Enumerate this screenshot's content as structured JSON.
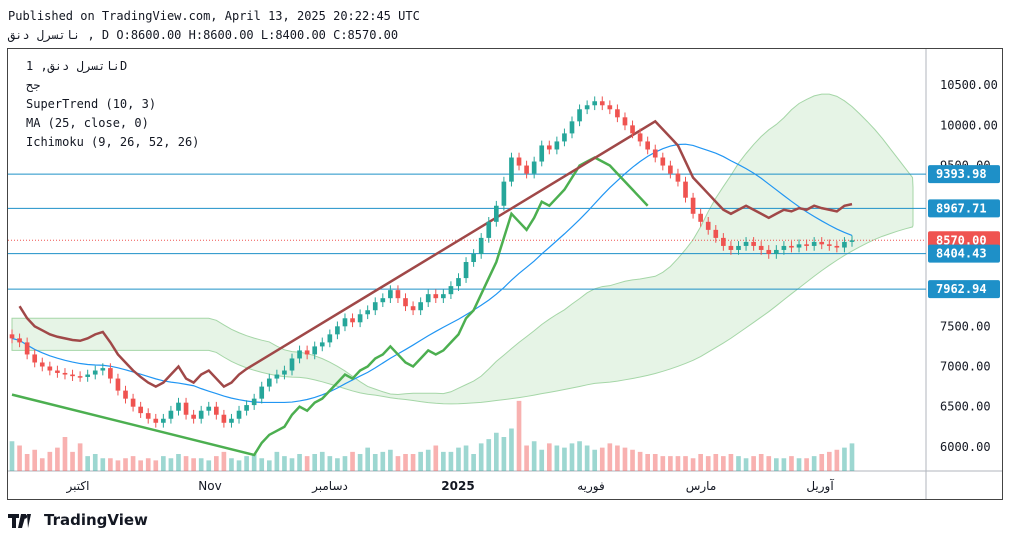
{
  "header": {
    "published": "Published on TradingView.com, April 13, 2025 20:22:45 UTC",
    "ohlc": "ناتسرل دنق , D O:8600.00 H:8600.00 L:8400.00 C:8570.00"
  },
  "legend": {
    "symbol": "ناتسرل دنق, 1D",
    "exchange": "جح",
    "supertrend": "SuperTrend (10, 3)",
    "ma": "MA (25, close, 0)",
    "ichimoku": "Ichimoku (9, 26, 52, 26)"
  },
  "footer": {
    "brand": "TradingView"
  },
  "colors": {
    "up": "#26a69a",
    "down": "#ef5350",
    "supertrend_up": "#4caf50",
    "supertrend_down": "#a04848",
    "ma": "#2196f3",
    "cloud_green": "#a5d6a7",
    "cloud_red": "#ef9a9a",
    "level": "#1e90c8"
  },
  "chart_data": {
    "type": "candlestick",
    "title": "ناتسرل دنق, 1D",
    "x_ticks": [
      "اکتبر",
      "Nov",
      "دسامبر",
      "2025",
      "فوریه",
      "مارس",
      "آوریل"
    ],
    "y_ticks": [
      6000,
      6500,
      7000,
      7500,
      8000,
      8500,
      9000,
      9500,
      10000,
      10500
    ],
    "y_tick_labels": [
      "6000.00",
      "6500.00",
      "7000.00",
      "7500.00",
      "8000.00",
      "8500.00",
      "9000.00",
      "9500.00",
      "10000.00",
      "10500.00"
    ],
    "ylim": [
      5700,
      10950
    ],
    "price_levels": [
      {
        "label": "9393.98",
        "value": 9393.98,
        "color": "#1e90c8"
      },
      {
        "label": "8967.71",
        "value": 8967.71,
        "color": "#1e90c8"
      },
      {
        "label": "8570.00",
        "value": 8570.0,
        "color": "#ef5350"
      },
      {
        "label": "8404.43",
        "value": 8404.43,
        "color": "#1e90c8"
      },
      {
        "label": "7962.94",
        "value": 7962.94,
        "color": "#1e90c8"
      }
    ],
    "close": [
      7350,
      7300,
      7150,
      7050,
      7000,
      6950,
      6920,
      6900,
      6880,
      6870,
      6900,
      6950,
      6980,
      6850,
      6700,
      6600,
      6500,
      6420,
      6350,
      6300,
      6350,
      6450,
      6550,
      6400,
      6350,
      6450,
      6500,
      6400,
      6300,
      6350,
      6450,
      6520,
      6600,
      6750,
      6850,
      6900,
      6950,
      7100,
      7200,
      7150,
      7250,
      7300,
      7400,
      7500,
      7600,
      7550,
      7650,
      7700,
      7800,
      7850,
      7950,
      7850,
      7750,
      7700,
      7800,
      7900,
      7850,
      7900,
      8000,
      8100,
      8300,
      8400,
      8600,
      8800,
      9000,
      9300,
      9600,
      9500,
      9400,
      9550,
      9750,
      9700,
      9800,
      9900,
      10050,
      10200,
      10250,
      10300,
      10250,
      10200,
      10100,
      10000,
      9900,
      9800,
      9700,
      9600,
      9500,
      9400,
      9300,
      9100,
      8900,
      8800,
      8700,
      8600,
      8500,
      8450,
      8500,
      8550,
      8500,
      8450,
      8400,
      8450,
      8500,
      8480,
      8520,
      8500,
      8550,
      8520,
      8500,
      8480,
      8550,
      8570
    ],
    "volume": [
      14,
      12,
      8,
      10,
      6,
      9,
      11,
      16,
      9,
      13,
      7,
      8,
      6,
      6,
      5,
      6,
      7,
      5,
      6,
      5,
      7,
      6,
      8,
      7,
      6,
      6,
      5,
      7,
      9,
      6,
      5,
      7,
      8,
      6,
      5,
      9,
      7,
      6,
      8,
      7,
      8,
      9,
      7,
      6,
      7,
      9,
      8,
      11,
      8,
      9,
      10,
      7,
      8,
      8,
      9,
      10,
      12,
      9,
      9,
      11,
      12,
      8,
      13,
      15,
      18,
      16,
      20,
      33,
      12,
      14,
      10,
      13,
      12,
      11,
      13,
      14,
      12,
      10,
      11,
      13,
      12,
      11,
      10,
      9,
      8,
      8,
      7,
      7,
      7,
      7,
      6,
      8,
      7,
      8,
      7,
      8,
      7,
      6,
      7,
      8,
      7,
      6,
      6,
      7,
      6,
      6,
      7,
      8,
      9,
      10,
      11,
      13
    ]
  }
}
